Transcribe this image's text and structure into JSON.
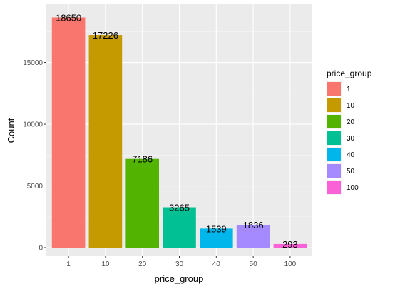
{
  "chart_data": {
    "type": "bar",
    "categories": [
      "1",
      "10",
      "20",
      "30",
      "40",
      "50",
      "100"
    ],
    "values": [
      18650,
      17226,
      7186,
      3265,
      1539,
      1836,
      293
    ],
    "data_labels": [
      "18650",
      "17226",
      "7186",
      "3265",
      "1539",
      "1836",
      "293"
    ],
    "colors": [
      "#F8766D",
      "#C49A00",
      "#53B400",
      "#00C094",
      "#00B6EB",
      "#A58AFF",
      "#FB61D7"
    ],
    "title": "",
    "xlabel": "price_group",
    "ylabel": "Count",
    "ylim": [
      0,
      19600
    ],
    "yticks": [
      0,
      5000,
      10000,
      15000
    ],
    "ytick_labels": [
      "0",
      "5000",
      "10000",
      "15000"
    ],
    "grid": true,
    "legend": {
      "title": "price_group",
      "placement": "right",
      "entries": [
        "1",
        "10",
        "20",
        "30",
        "40",
        "50",
        "100"
      ]
    }
  }
}
